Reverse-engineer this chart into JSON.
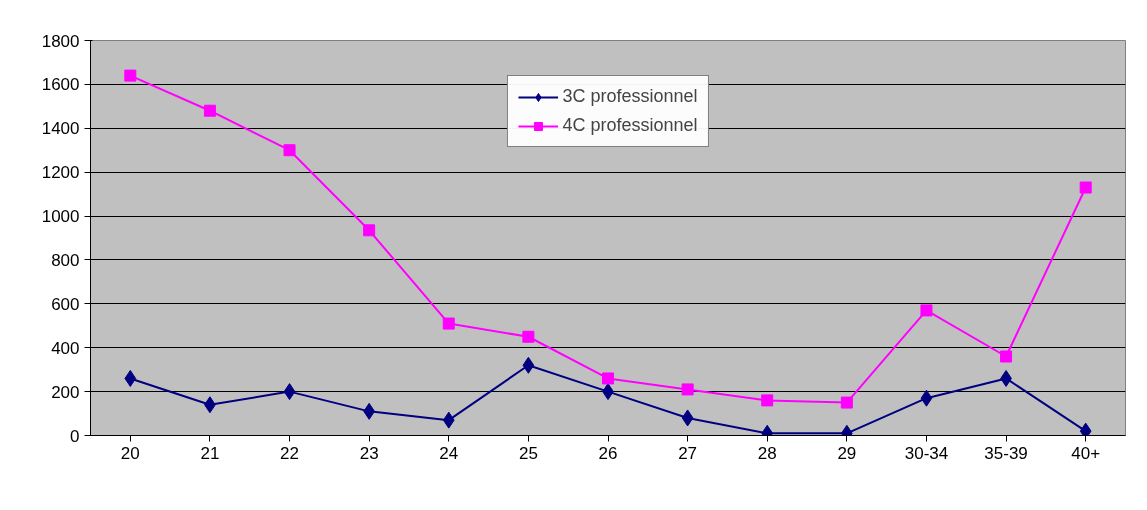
{
  "chart_data": {
    "type": "line",
    "categories": [
      "20",
      "21",
      "22",
      "23",
      "24",
      "25",
      "26",
      "27",
      "28",
      "29",
      "30-34",
      "35-39",
      "40+"
    ],
    "series": [
      {
        "name": "3C professionnel",
        "color": "#000080",
        "marker": "diamond",
        "values": [
          260,
          140,
          200,
          110,
          70,
          320,
          200,
          80,
          10,
          10,
          170,
          260,
          20
        ]
      },
      {
        "name": "4C professionnel",
        "color": "#ff00ff",
        "marker": "square",
        "values": [
          1640,
          1480,
          1300,
          935,
          510,
          450,
          260,
          210,
          160,
          150,
          570,
          360,
          1130
        ]
      }
    ],
    "ylim": [
      0,
      1800
    ],
    "yticks": [
      0,
      200,
      400,
      600,
      800,
      1000,
      1200,
      1400,
      1600,
      1800
    ],
    "grid": "y",
    "legend": "top",
    "line_style": "solid"
  }
}
